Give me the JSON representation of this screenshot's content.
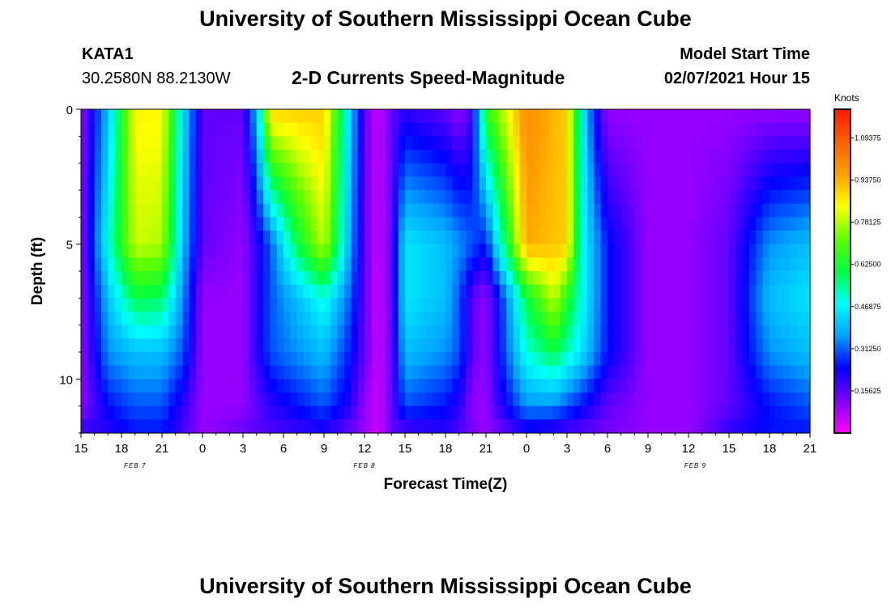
{
  "header": {
    "title": "University of Southern Mississippi Ocean Cube",
    "station_id": "KATA1",
    "coordinates": "30.2580N 88.2130W",
    "subtitle": "2-D Currents Speed-Magnitude",
    "model_start_label": "Model Start Time",
    "model_start_value": "02/07/2021 Hour 15"
  },
  "footer": {
    "title": "University of Southern Mississippi Ocean Cube"
  },
  "colors": {
    "text": "#000000",
    "colormap": [
      "#ff00ff",
      "#8000ff",
      "#0000ff",
      "#00a0ff",
      "#00ffff",
      "#00ff40",
      "#60ff00",
      "#ffff00",
      "#ffa000",
      "#ff6000",
      "#ff1800"
    ]
  },
  "chart_data": {
    "type": "heatmap",
    "xlabel": "Forecast Time(Z)",
    "ylabel": "Depth (ft)",
    "x_start_hour": 15,
    "x_hours": 54,
    "x_tick_labels": [
      "15",
      "18",
      "21",
      "0",
      "3",
      "6",
      "9",
      "12",
      "15",
      "18",
      "21",
      "0",
      "3",
      "6",
      "9",
      "12",
      "15",
      "18",
      "21"
    ],
    "date_labels": [
      {
        "text": "FEB 7",
        "hour": 19
      },
      {
        "text": "FEB 8",
        "hour": 36
      },
      {
        "text": "FEB 9",
        "hour": 60.5
      }
    ],
    "y_range": [
      0,
      12
    ],
    "y_tick_labels": [
      "0",
      "5",
      "10"
    ],
    "colorbar": {
      "title": "Knots",
      "min": 0,
      "max": 1.2,
      "tick_labels": [
        "1.09375",
        "0.93750",
        "0.78125",
        "0.62500",
        "0.46875",
        "0.31250",
        "0.15625"
      ]
    },
    "speed_knots_by_depth_ft": [
      {
        "depth_ft": 0,
        "profile": [
          [
            15,
            0.1
          ],
          [
            17,
            0.4
          ],
          [
            19,
            0.85
          ],
          [
            21,
            0.85
          ],
          [
            22.5,
            0.45
          ],
          [
            24,
            0.15
          ],
          [
            27,
            0.15
          ],
          [
            28,
            0.4
          ],
          [
            29,
            0.9
          ],
          [
            33,
            0.9
          ],
          [
            35,
            0.4
          ],
          [
            36,
            0.15
          ],
          [
            37,
            0.05
          ],
          [
            38,
            0.15
          ],
          [
            39,
            0.2
          ],
          [
            42,
            0.15
          ],
          [
            43,
            0.1
          ],
          [
            44,
            0.2
          ],
          [
            45,
            0.65
          ],
          [
            48,
            1.0
          ],
          [
            51,
            0.9
          ],
          [
            52,
            0.5
          ],
          [
            53,
            0.25
          ],
          [
            54,
            0.1
          ],
          [
            57,
            0.1
          ],
          [
            60,
            0.1
          ],
          [
            63,
            0.1
          ],
          [
            66,
            0.1
          ],
          [
            69,
            0.1
          ]
        ]
      },
      {
        "depth_ft": 5,
        "profile": [
          [
            15,
            0.1
          ],
          [
            17,
            0.5
          ],
          [
            19,
            0.8
          ],
          [
            21,
            0.78
          ],
          [
            22.5,
            0.4
          ],
          [
            24,
            0.15
          ],
          [
            27,
            0.1
          ],
          [
            29,
            0.3
          ],
          [
            31,
            0.6
          ],
          [
            33,
            0.8
          ],
          [
            35,
            0.35
          ],
          [
            36,
            0.15
          ],
          [
            37,
            0.05
          ],
          [
            38,
            0.15
          ],
          [
            39,
            0.45
          ],
          [
            42,
            0.4
          ],
          [
            43,
            0.35
          ],
          [
            44,
            0.3
          ],
          [
            45,
            0.25
          ],
          [
            46,
            0.5
          ],
          [
            48,
            0.95
          ],
          [
            51,
            0.9
          ],
          [
            52,
            0.5
          ],
          [
            54,
            0.25
          ],
          [
            56,
            0.15
          ],
          [
            57,
            0.1
          ],
          [
            60,
            0.1
          ],
          [
            63,
            0.15
          ],
          [
            66,
            0.35
          ],
          [
            69,
            0.4
          ]
        ]
      },
      {
        "depth_ft": 7,
        "profile": [
          [
            15,
            0.1
          ],
          [
            17,
            0.4
          ],
          [
            19,
            0.6
          ],
          [
            21,
            0.58
          ],
          [
            22.5,
            0.35
          ],
          [
            24,
            0.1
          ],
          [
            27,
            0.1
          ],
          [
            29,
            0.3
          ],
          [
            31,
            0.4
          ],
          [
            33,
            0.5
          ],
          [
            35,
            0.3
          ],
          [
            36,
            0.15
          ],
          [
            37,
            0.05
          ],
          [
            38,
            0.15
          ],
          [
            39,
            0.45
          ],
          [
            42,
            0.4
          ],
          [
            43,
            0.3
          ],
          [
            44,
            0.15
          ],
          [
            45,
            0.1
          ],
          [
            46,
            0.25
          ],
          [
            48,
            0.6
          ],
          [
            50,
            0.8
          ],
          [
            52,
            0.5
          ],
          [
            54,
            0.25
          ],
          [
            57,
            0.1
          ],
          [
            60,
            0.1
          ],
          [
            63,
            0.15
          ],
          [
            66,
            0.4
          ],
          [
            69,
            0.45
          ]
        ]
      },
      {
        "depth_ft": 9,
        "profile": [
          [
            15,
            0.1
          ],
          [
            17,
            0.35
          ],
          [
            19,
            0.4
          ],
          [
            21,
            0.4
          ],
          [
            22.5,
            0.3
          ],
          [
            24,
            0.1
          ],
          [
            27,
            0.1
          ],
          [
            29,
            0.3
          ],
          [
            31,
            0.35
          ],
          [
            33,
            0.4
          ],
          [
            35,
            0.25
          ],
          [
            36,
            0.15
          ],
          [
            37,
            0.05
          ],
          [
            38,
            0.15
          ],
          [
            39,
            0.4
          ],
          [
            42,
            0.35
          ],
          [
            43,
            0.3
          ],
          [
            44,
            0.15
          ],
          [
            45,
            0.1
          ],
          [
            46,
            0.25
          ],
          [
            48,
            0.5
          ],
          [
            50,
            0.6
          ],
          [
            52,
            0.45
          ],
          [
            54,
            0.25
          ],
          [
            57,
            0.1
          ],
          [
            60,
            0.1
          ],
          [
            63,
            0.15
          ],
          [
            66,
            0.35
          ],
          [
            69,
            0.4
          ]
        ]
      },
      {
        "depth_ft": 11,
        "profile": [
          [
            15,
            0.1
          ],
          [
            17,
            0.25
          ],
          [
            19,
            0.3
          ],
          [
            21,
            0.3
          ],
          [
            22.5,
            0.2
          ],
          [
            24,
            0.1
          ],
          [
            27,
            0.1
          ],
          [
            29,
            0.2
          ],
          [
            31,
            0.25
          ],
          [
            33,
            0.3
          ],
          [
            35,
            0.2
          ],
          [
            36,
            0.1
          ],
          [
            37,
            0.05
          ],
          [
            38,
            0.15
          ],
          [
            39,
            0.3
          ],
          [
            42,
            0.25
          ],
          [
            43,
            0.2
          ],
          [
            44,
            0.1
          ],
          [
            45,
            0.1
          ],
          [
            46,
            0.2
          ],
          [
            48,
            0.35
          ],
          [
            50,
            0.35
          ],
          [
            52,
            0.25
          ],
          [
            54,
            0.15
          ],
          [
            57,
            0.1
          ],
          [
            60,
            0.1
          ],
          [
            63,
            0.15
          ],
          [
            66,
            0.25
          ],
          [
            69,
            0.3
          ]
        ]
      },
      {
        "depth_ft": 12,
        "profile": [
          [
            15,
            0.2
          ],
          [
            17,
            0.2
          ],
          [
            19,
            0.25
          ],
          [
            21,
            0.25
          ],
          [
            24,
            0.1
          ],
          [
            27,
            0.15
          ],
          [
            33,
            0.2
          ],
          [
            36,
            0.1
          ],
          [
            37,
            0.05
          ],
          [
            38,
            0.15
          ],
          [
            42,
            0.2
          ],
          [
            45,
            0.1
          ],
          [
            48,
            0.2
          ],
          [
            52,
            0.15
          ],
          [
            57,
            0.1
          ],
          [
            60,
            0.1
          ],
          [
            63,
            0.2
          ],
          [
            66,
            0.25
          ],
          [
            69,
            0.25
          ]
        ]
      }
    ]
  }
}
